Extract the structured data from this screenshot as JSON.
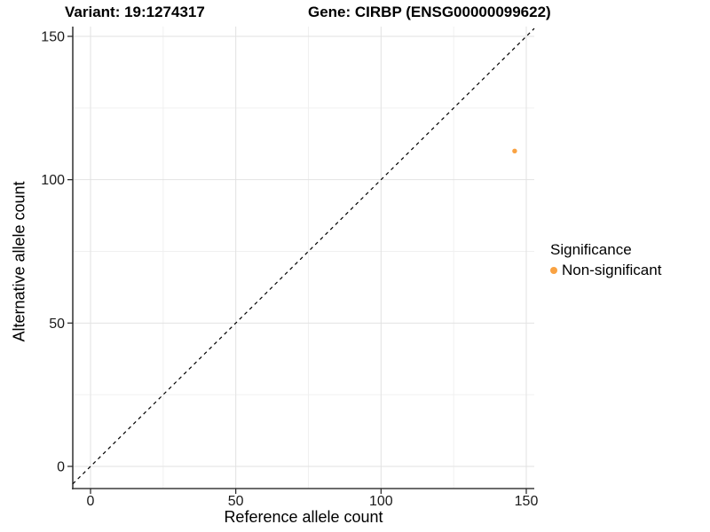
{
  "titles": {
    "variant": "Variant: 19:1274317",
    "gene": "Gene: CIRBP (ENSG00000099622)"
  },
  "chart_data": {
    "type": "scatter",
    "title_left": "Variant: 19:1274317",
    "title_right": "Gene: CIRBP (ENSG00000099622)",
    "xlabel": "Reference allele count",
    "ylabel": "Alternative allele count",
    "xlim": [
      -7,
      153
    ],
    "ylim": [
      -7,
      153
    ],
    "x_ticks": [
      0,
      50,
      100,
      150
    ],
    "y_ticks": [
      0,
      50,
      100,
      150
    ],
    "x_minor_ticks": [
      25,
      75,
      125
    ],
    "y_minor_ticks": [
      25,
      75,
      125
    ],
    "grid": "major-and-minor",
    "legend_position": "right",
    "series": [
      {
        "name": "Non-significant",
        "color": "#F9A242",
        "points": [
          {
            "x": 146,
            "y": 110
          }
        ]
      }
    ],
    "reference_line": {
      "type": "identity",
      "equation": "y = x",
      "style": "dashed",
      "color": "#000000"
    },
    "legend": {
      "title": "Significance"
    }
  },
  "style": {
    "background": "#ffffff",
    "grid_major_color": "#e2e2e2",
    "grid_minor_color": "#f0f0f0",
    "axis_line_color": "#3c3c3c",
    "tick_color": "#222222",
    "tick_label_color": "#1a1a1a",
    "point_color": "#F9A242"
  }
}
